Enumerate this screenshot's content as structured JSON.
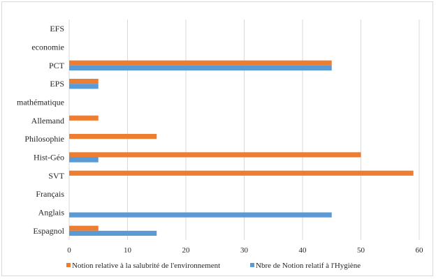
{
  "chart_data": {
    "type": "bar",
    "orientation": "horizontal",
    "categories": [
      "Espagnol",
      "Anglais",
      "Français",
      "SVT",
      "Hist-Géo",
      "Philosophie",
      "Allemand",
      "mathématique",
      "EPS",
      "PCT",
      "economie",
      "EFS"
    ],
    "series": [
      {
        "name": "Notion relative  à la salubrité de l'environnement",
        "color": "#ED7D31",
        "values": [
          5,
          0,
          0,
          59,
          50,
          15,
          5,
          0,
          5,
          45,
          0,
          0
        ]
      },
      {
        "name": "Nbre de Notion relatif à l'Hygiène",
        "color": "#5B9BD5",
        "values": [
          15,
          45,
          0,
          0,
          5,
          0,
          0,
          0,
          5,
          45,
          0,
          0
        ]
      }
    ],
    "xlim": [
      0,
      60
    ],
    "xticks": [
      "0",
      "10",
      "20",
      "30",
      "40",
      "50",
      "60"
    ],
    "grid": true,
    "legend_position": "bottom"
  }
}
